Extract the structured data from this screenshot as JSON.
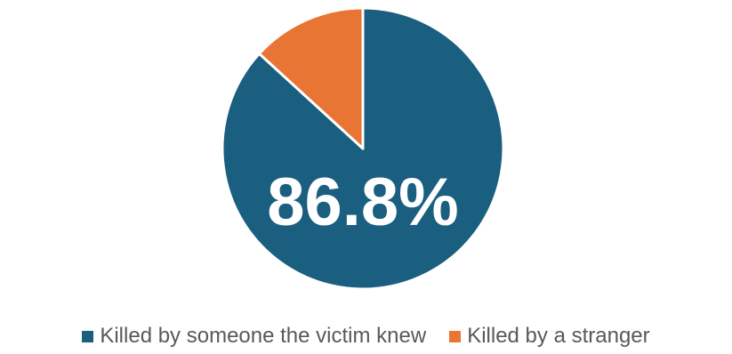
{
  "chart_data": {
    "type": "pie",
    "categories": [
      "Killed by someone the victim knew",
      "Killed by a stranger"
    ],
    "values": [
      86.8,
      13.2
    ],
    "colors": [
      "#1a5e80",
      "#e97534"
    ],
    "data_labels": [
      "86.8%",
      ""
    ],
    "legend_position": "bottom",
    "title": ""
  },
  "legend": {
    "items": [
      {
        "label": "Killed by someone the victim knew",
        "color": "#1a5e80"
      },
      {
        "label": "Killed by a stranger",
        "color": "#e97534"
      }
    ]
  }
}
